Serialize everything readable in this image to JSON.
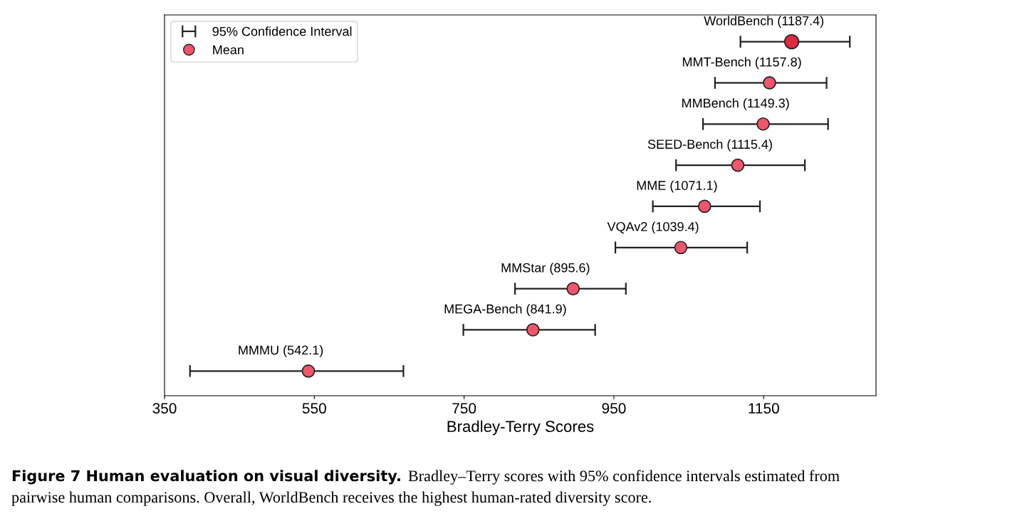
{
  "chart_data": {
    "type": "scatter",
    "orientation": "horizontal",
    "xlabel": "Bradley-Terry Scores",
    "categories": [
      null,
      null,
      null,
      null,
      null,
      null,
      null,
      null,
      null
    ],
    "series": [
      {
        "name": "Mean",
        "color": "#f0566a",
        "colors": [
          "#dc2a40",
          "#f0566a",
          "#f0566a",
          "#f0566a",
          "#f0566a",
          "#f0566a",
          "#f0566a",
          "#f0566a",
          "#f0566a"
        ],
        "values": [
          1187.4,
          1157.8,
          1149.3,
          1115.4,
          1071.1,
          1039.4,
          895.6,
          841.9,
          542.1
        ],
        "errors": [
          [
            1119,
            1265
          ],
          [
            1085,
            1234
          ],
          [
            1069,
            1236
          ],
          [
            1033,
            1205
          ],
          [
            1002,
            1145
          ],
          [
            952,
            1128
          ],
          [
            818,
            966
          ],
          [
            749,
            925
          ],
          [
            384,
            669
          ]
        ],
        "value_labels": [
          "WorldBench (1187.4)",
          "MMT-Bench (1157.8)",
          "MMBench (1149.3)",
          "SEED-Bench (1115.4)",
          "MME (1071.1)",
          "VQAv2 (1039.4)",
          "MMStar (895.6)",
          "MEGA-Bench (841.9)",
          "MMMU (542.1)"
        ]
      }
    ],
    "xlim": [
      350,
      1300
    ],
    "xticks": [
      350,
      550,
      750,
      950,
      1150
    ],
    "tick_labels": "x",
    "grid": false,
    "legend": "top left",
    "marker": "circle",
    "annotations": [
      "95% Confidence Interval",
      "Figure 7 Human evaluation on visual diversity.",
      "Bradley–Terry scores with 95% confidence intervals estimated from",
      "pairwise human comparisons. Overall, WorldBench receives the highest human-rated diversity score."
    ]
  }
}
